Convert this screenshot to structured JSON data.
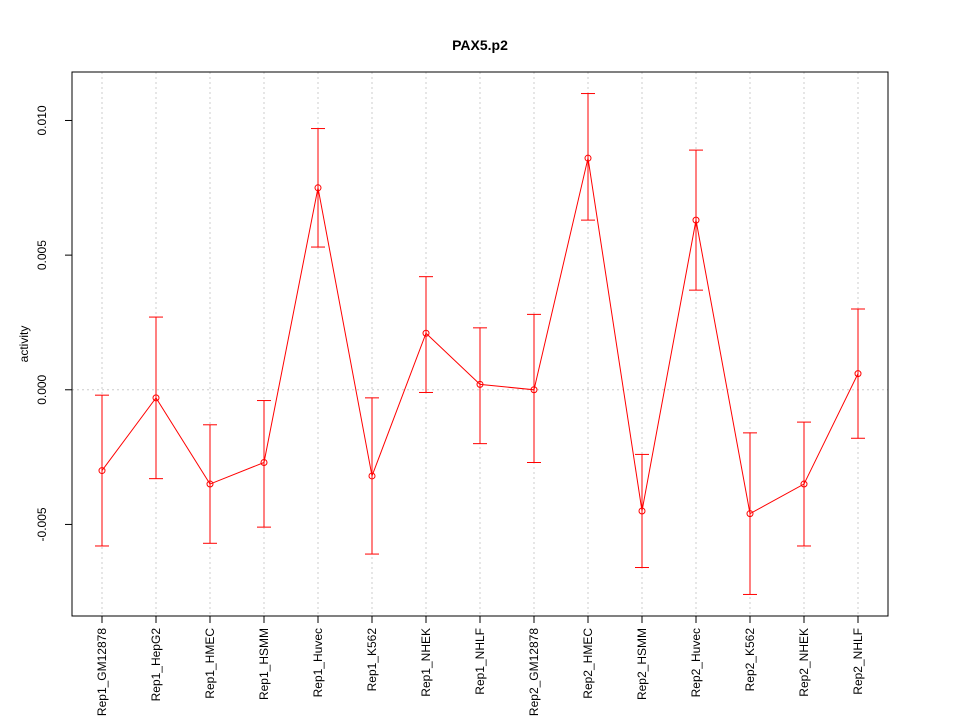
{
  "chart_data": {
    "type": "line",
    "title": "PAX5.p2",
    "xlabel": "",
    "ylabel": "activity",
    "ylim": [
      -0.0084,
      0.0118
    ],
    "yticks": [
      -0.005,
      0.0,
      0.005,
      0.01
    ],
    "ytick_labels": [
      "-0.005",
      "0.000",
      "0.005",
      "0.010"
    ],
    "grid": true,
    "color": "#ff0000",
    "categories": [
      "Rep1_GM12878",
      "Rep1_HepG2",
      "Rep1_HMEC",
      "Rep1_HSMM",
      "Rep1_Huvec",
      "Rep1_K562",
      "Rep1_NHEK",
      "Rep1_NHLF",
      "Rep2_GM12878",
      "Rep2_HMEC",
      "Rep2_HSMM",
      "Rep2_Huvec",
      "Rep2_K562",
      "Rep2_NHEK",
      "Rep2_NHLF"
    ],
    "series": [
      {
        "name": "activity",
        "values": [
          -0.003,
          -0.0003,
          -0.0035,
          -0.0027,
          0.0075,
          -0.0032,
          0.0021,
          0.0002,
          0.0,
          0.0086,
          -0.0045,
          0.0063,
          -0.0046,
          -0.0035,
          0.0006
        ],
        "error_low": [
          -0.0058,
          -0.0033,
          -0.0057,
          -0.0051,
          0.0053,
          -0.0061,
          -0.0001,
          -0.002,
          -0.0027,
          0.0063,
          -0.0066,
          0.0037,
          -0.0076,
          -0.0058,
          -0.0018
        ],
        "error_high": [
          -0.0002,
          0.0027,
          -0.0013,
          -0.0004,
          0.0097,
          -0.0003,
          0.0042,
          0.0023,
          0.0028,
          0.011,
          -0.0024,
          0.0089,
          -0.0016,
          -0.0012,
          0.003
        ]
      }
    ]
  }
}
